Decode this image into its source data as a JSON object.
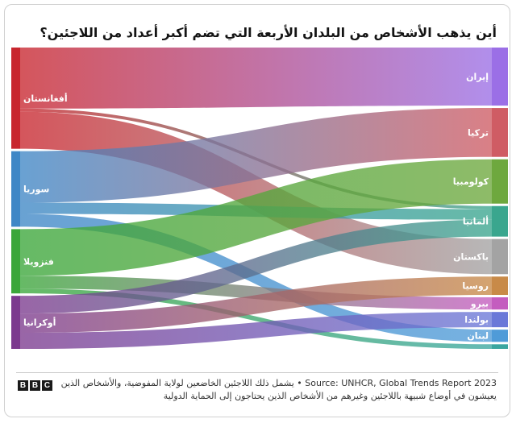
{
  "title": "أين يذهب الأشخاص من البلدان الأربعة التي تضم أكبر أعداد من اللاجئين؟",
  "footer": {
    "note": "يشمل ذلك اللاجئين الخاضعين لولاية المفوضية، والأشخاص الذين يعيشون في أوضاع شبيهة باللاجئين وغيرهم من الأشخاص الذين يحتاجون إلى الحماية الدولية",
    "separator": " • ",
    "source": "Source: UNHCR, Global Trends Report 2023",
    "logo_letters": [
      "B",
      "B",
      "C"
    ]
  },
  "chart_data": {
    "type": "sankey",
    "title": "أين يذهب الأشخاص من البلدان الأربعة التي تضم أكبر أعداد من اللاجئين؟",
    "sources": [
      {
        "id": "afg",
        "label": "أفغانستان",
        "color": "#c8262e"
      },
      {
        "id": "syr",
        "label": "سوريا",
        "color": "#3f87c6"
      },
      {
        "id": "ven",
        "label": "فنزويلا",
        "color": "#3ba63a"
      },
      {
        "id": "ukr",
        "label": "أوكرانيا",
        "color": "#7c3a8e"
      }
    ],
    "targets": [
      {
        "id": "iran",
        "label": "إيران",
        "color": "#9b6fe6"
      },
      {
        "id": "turkey",
        "label": "تركيا",
        "color": "#cf5c64"
      },
      {
        "id": "colombia",
        "label": "كولومبيا",
        "color": "#6ea83e"
      },
      {
        "id": "germany",
        "label": "ألمانيا",
        "color": "#3aa68e"
      },
      {
        "id": "pakistan",
        "label": "باكستان",
        "color": "#a3a3a3"
      },
      {
        "id": "russia",
        "label": "روسيا",
        "color": "#c88a48"
      },
      {
        "id": "peru",
        "label": "بيرو",
        "color": "#c45cbf"
      },
      {
        "id": "poland",
        "label": "بولندا",
        "color": "#6a78d8"
      },
      {
        "id": "lebanon",
        "label": "لبنان",
        "color": "#4f9bd8"
      },
      {
        "id": "other",
        "label": "",
        "color": "#3aa6a0"
      }
    ],
    "flows": [
      {
        "from": "afg",
        "to": "iran",
        "value": 3.8
      },
      {
        "from": "afg",
        "to": "pakistan",
        "value": 2.3
      },
      {
        "from": "afg",
        "to": "germany",
        "value": 0.2
      },
      {
        "from": "syr",
        "to": "turkey",
        "value": 3.2
      },
      {
        "from": "syr",
        "to": "germany",
        "value": 0.7
      },
      {
        "from": "syr",
        "to": "lebanon",
        "value": 0.8
      },
      {
        "from": "ven",
        "to": "colombia",
        "value": 2.9
      },
      {
        "from": "ven",
        "to": "peru",
        "value": 0.8
      },
      {
        "from": "ven",
        "to": "other",
        "value": 0.3
      },
      {
        "from": "ukr",
        "to": "russia",
        "value": 1.2
      },
      {
        "from": "ukr",
        "to": "germany",
        "value": 1.1
      },
      {
        "from": "ukr",
        "to": "poland",
        "value": 1.0
      }
    ]
  }
}
